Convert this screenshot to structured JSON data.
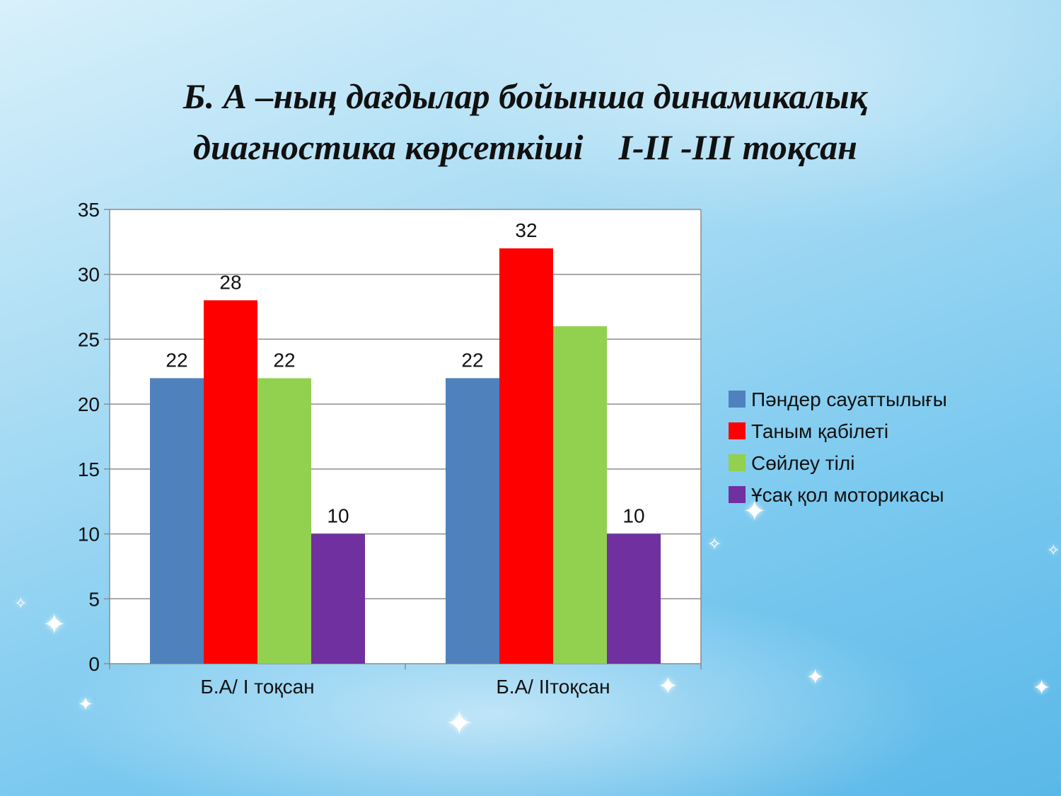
{
  "slide": {
    "title_line1": "Б. А –ның дағдылар бойынша динамикалық",
    "title_line2": "диагностика көрсеткіші    I-II -III тоқсан"
  },
  "chart_data": {
    "type": "bar",
    "categories": [
      "Б.А/ I тоқсан",
      "Б.А/ IIтоқсан"
    ],
    "series": [
      {
        "name": "Пәндер сауаттылығы",
        "color": "#4f81bd",
        "values": [
          22,
          22
        ],
        "labels": [
          "22",
          "22"
        ]
      },
      {
        "name": "Таным қабілеті",
        "color": "#ff0000",
        "values": [
          28,
          32
        ],
        "labels": [
          "28",
          "32"
        ]
      },
      {
        "name": "Сөйлеу тілі",
        "color": "#92d050",
        "values": [
          22,
          26
        ],
        "labels": [
          "22",
          null
        ]
      },
      {
        "name": "Ұсақ қол моторикасы",
        "color": "#7030a0",
        "values": [
          10,
          10
        ],
        "labels": [
          "10",
          "10"
        ]
      }
    ],
    "ylim": [
      0,
      35
    ],
    "yticks": [
      0,
      5,
      10,
      15,
      20,
      25,
      30,
      35
    ],
    "grid": true,
    "legend_position": "right"
  }
}
